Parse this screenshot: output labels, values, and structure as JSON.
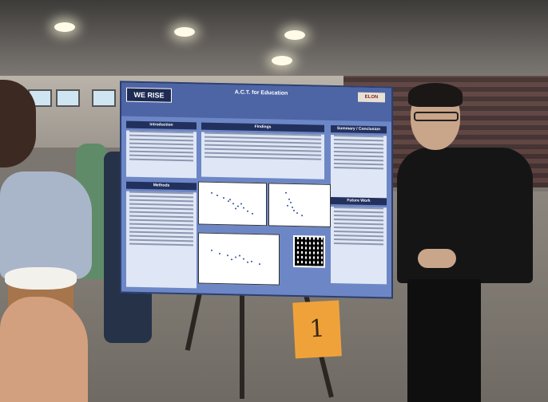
{
  "poster": {
    "logo_left": "WE RISE",
    "title": "A.C.T. for Education",
    "logo_right": "ELON",
    "sections": {
      "introduction": "Introduction",
      "findings": "Findings",
      "summary": "Summary / Conclusion",
      "methods": "Methods",
      "future_work": "Future Work"
    }
  },
  "table_sign": {
    "number": "1"
  }
}
